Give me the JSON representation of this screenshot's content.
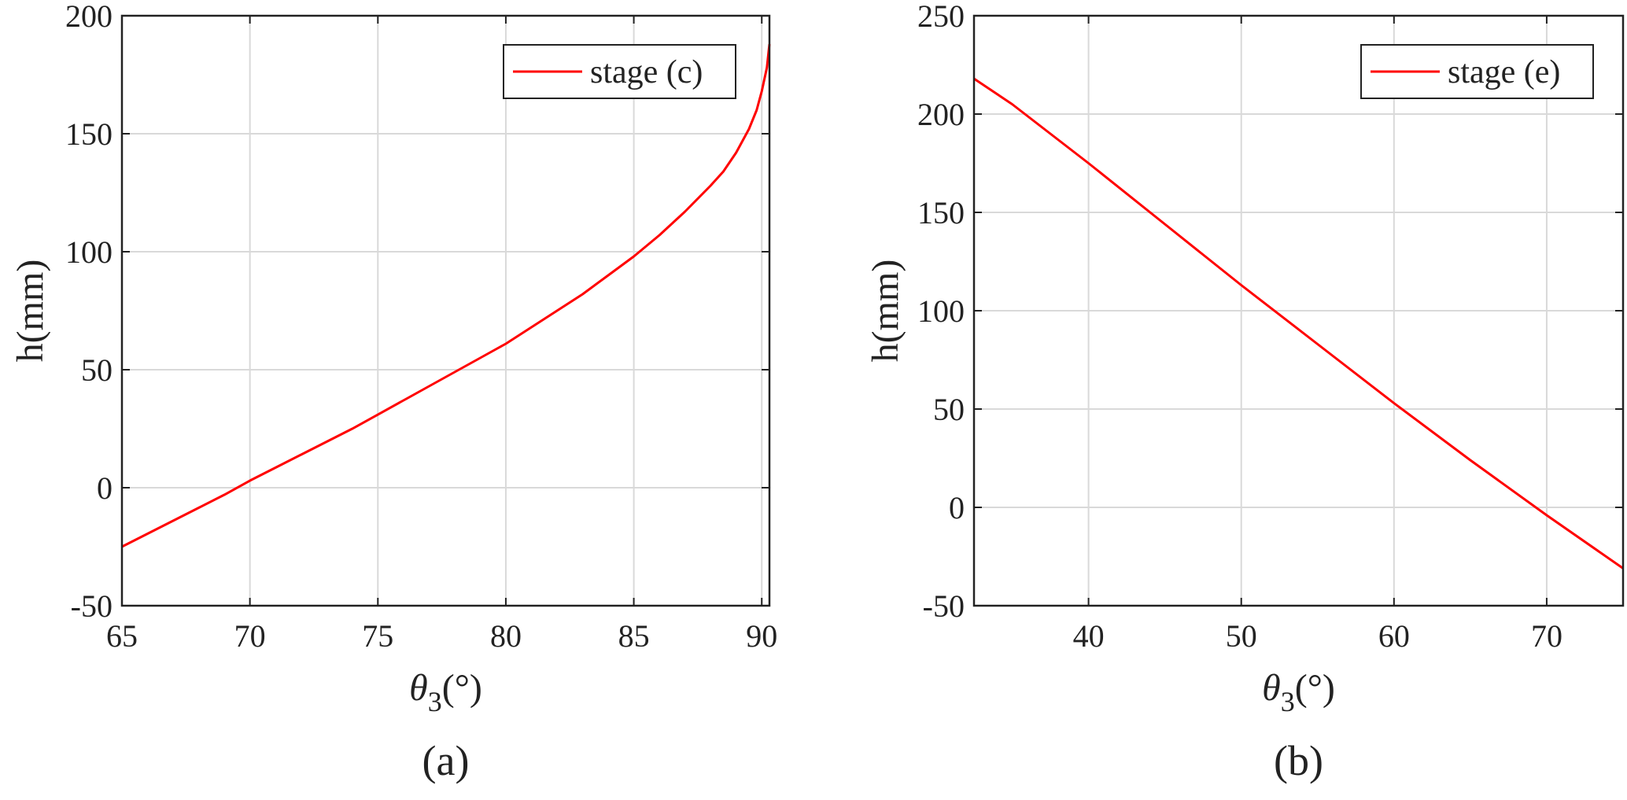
{
  "chart_data": [
    {
      "type": "line",
      "panel_label": "(a)",
      "xlabel_symbol": "θ",
      "xlabel_subscript": "3",
      "xlabel_unit": "(°)",
      "ylabel": "h(mm)",
      "xlim": [
        65,
        90.3
      ],
      "ylim": [
        -50,
        200
      ],
      "xticks": [
        65,
        70,
        75,
        80,
        85,
        90
      ],
      "yticks": [
        -50,
        0,
        50,
        100,
        150,
        200
      ],
      "grid": true,
      "legend_position": "top-right",
      "series": [
        {
          "name": "stage (c)",
          "color": "#ff0000",
          "x": [
            65,
            66,
            67,
            68,
            69,
            70,
            71,
            72,
            73,
            74,
            75,
            76,
            77,
            78,
            79,
            80,
            81,
            82,
            83,
            84,
            85,
            86,
            87,
            88,
            88.5,
            89,
            89.5,
            89.8,
            90,
            90.2,
            90.3
          ],
          "y": [
            -25,
            -19.5,
            -14,
            -8.5,
            -3,
            3,
            8.5,
            14,
            19.5,
            25,
            31,
            37,
            43,
            49,
            55,
            61,
            68,
            75,
            82,
            90,
            98,
            107,
            117,
            128,
            134,
            142,
            152,
            160,
            168,
            178,
            188
          ]
        }
      ]
    },
    {
      "type": "line",
      "panel_label": "(b)",
      "xlabel_symbol": "θ",
      "xlabel_subscript": "3",
      "xlabel_unit": "(°)",
      "ylabel": "h(mm)",
      "xlim": [
        32.5,
        75
      ],
      "ylim": [
        -50,
        250
      ],
      "xticks": [
        40,
        50,
        60,
        70
      ],
      "yticks": [
        -50,
        0,
        50,
        100,
        150,
        200,
        250
      ],
      "grid": true,
      "legend_position": "top-right",
      "series": [
        {
          "name": "stage (e)",
          "color": "#ff0000",
          "x": [
            32.5,
            35,
            40,
            45,
            50,
            55,
            60,
            65,
            70,
            75
          ],
          "y": [
            218,
            205,
            175,
            144,
            113,
            83,
            53,
            24,
            -4,
            -31
          ]
        }
      ]
    }
  ]
}
